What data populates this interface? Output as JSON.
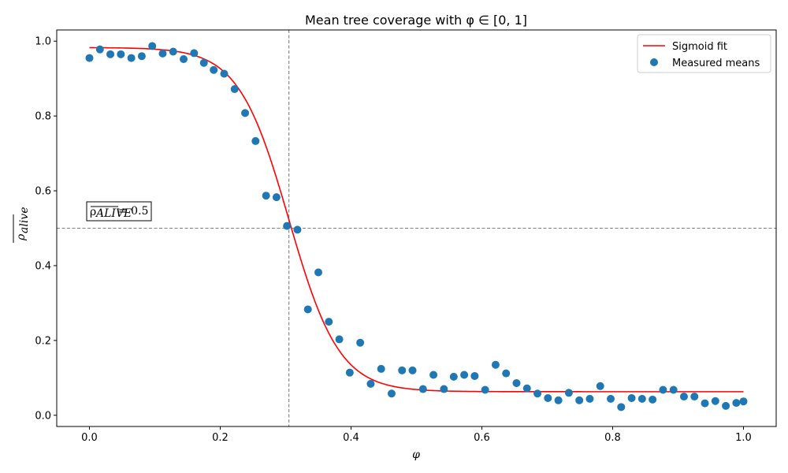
{
  "chart_data": {
    "type": "scatter",
    "title": "Mean tree coverage with φ ∈ [0, 1]",
    "xlabel": "φ",
    "ylabel": "ρ_alive (mean)",
    "xlim": [
      -0.05,
      1.05
    ],
    "ylim": [
      -0.03,
      1.03
    ],
    "x_ticks": [
      0.0,
      0.2,
      0.4,
      0.6,
      0.8,
      1.0
    ],
    "x_tick_labels": [
      "0.0",
      "0.2",
      "0.4",
      "0.6",
      "0.8",
      "1.0"
    ],
    "y_ticks": [
      0.0,
      0.2,
      0.4,
      0.6,
      0.8,
      1.0
    ],
    "y_tick_labels": [
      "0.0",
      "0.2",
      "0.4",
      "0.6",
      "0.8",
      "1.0"
    ],
    "grid": false,
    "legend_position": "top-right",
    "series": [
      {
        "name": "Sigmoid fit",
        "kind": "line",
        "color": "#ff0000",
        "model": {
          "form": "logistic",
          "lower": 0.063,
          "upper": 0.983,
          "midpoint": 0.305,
          "steepness": 26
        }
      },
      {
        "name": "Measured means",
        "kind": "scatter",
        "color": "#1f77b4",
        "x": [
          0.0,
          0.016,
          0.032,
          0.048,
          0.064,
          0.08,
          0.096,
          0.112,
          0.128,
          0.144,
          0.16,
          0.175,
          0.19,
          0.206,
          0.222,
          0.238,
          0.254,
          0.27,
          0.286,
          0.302,
          0.318,
          0.334,
          0.35,
          0.366,
          0.382,
          0.398,
          0.414,
          0.43,
          0.446,
          0.462,
          0.478,
          0.494,
          0.51,
          0.526,
          0.542,
          0.557,
          0.573,
          0.589,
          0.605,
          0.621,
          0.637,
          0.653,
          0.669,
          0.685,
          0.701,
          0.717,
          0.733,
          0.749,
          0.765,
          0.781,
          0.797,
          0.813,
          0.829,
          0.845,
          0.861,
          0.877,
          0.893,
          0.909,
          0.925,
          0.941,
          0.957,
          0.973,
          0.989,
          1.0
        ],
        "y": [
          0.955,
          0.978,
          0.965,
          0.965,
          0.955,
          0.96,
          0.987,
          0.967,
          0.972,
          0.952,
          0.968,
          0.942,
          0.923,
          0.913,
          0.872,
          0.808,
          0.733,
          0.587,
          0.583,
          0.506,
          0.496,
          0.283,
          0.382,
          0.25,
          0.203,
          0.114,
          0.194,
          0.084,
          0.124,
          0.058,
          0.12,
          0.12,
          0.07,
          0.108,
          0.07,
          0.103,
          0.108,
          0.105,
          0.068,
          0.135,
          0.112,
          0.086,
          0.072,
          0.058,
          0.046,
          0.04,
          0.06,
          0.04,
          0.044,
          0.078,
          0.044,
          0.022,
          0.046,
          0.044,
          0.042,
          0.068,
          0.068,
          0.05,
          0.05,
          0.032,
          0.038,
          0.025,
          0.033,
          0.037
        ]
      }
    ],
    "reference_lines": [
      {
        "orientation": "vertical",
        "x": 0.305,
        "style": "dashed",
        "color": "#808080"
      },
      {
        "orientation": "horizontal",
        "y": 0.5,
        "style": "dashed",
        "color": "#808080"
      }
    ],
    "annotation": {
      "text_main": "ρ",
      "text_sub": "ALIVE",
      "text_value": " = 0.5",
      "x": 0.0,
      "y": 0.53
    }
  }
}
